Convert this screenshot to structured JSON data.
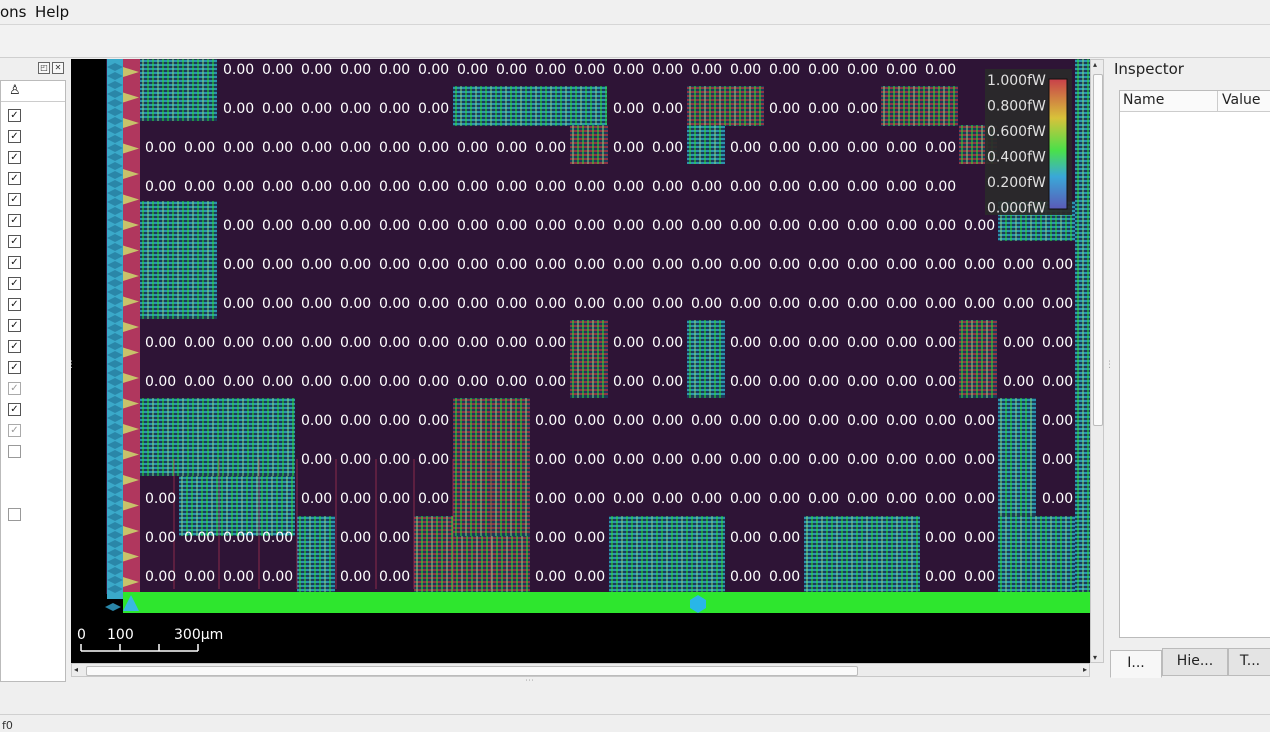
{
  "menu": {
    "items": [
      "ons",
      "Help"
    ]
  },
  "layers": {
    "checkbox_states": [
      "check",
      "check",
      "check",
      "check",
      "check",
      "check",
      "check",
      "check",
      "check",
      "check",
      "check",
      "check",
      "check",
      "dim",
      "check",
      "dim",
      "empty",
      "empty"
    ]
  },
  "viewport": {
    "cell_value": "0.00",
    "background_color": "#2e1436",
    "legend": {
      "labels": [
        "1.000fW",
        "0.800fW",
        "0.600fW",
        "0.400fW",
        "0.200fW",
        "0.000fW"
      ]
    },
    "scale_bar": {
      "labels": [
        "0",
        "100",
        "300μm"
      ]
    }
  },
  "inspector": {
    "title": "Inspector",
    "columns": [
      "Name",
      "Value"
    ],
    "tabs": [
      "I...",
      "Hie...",
      "T..."
    ]
  },
  "status": {
    "text": "f0"
  }
}
